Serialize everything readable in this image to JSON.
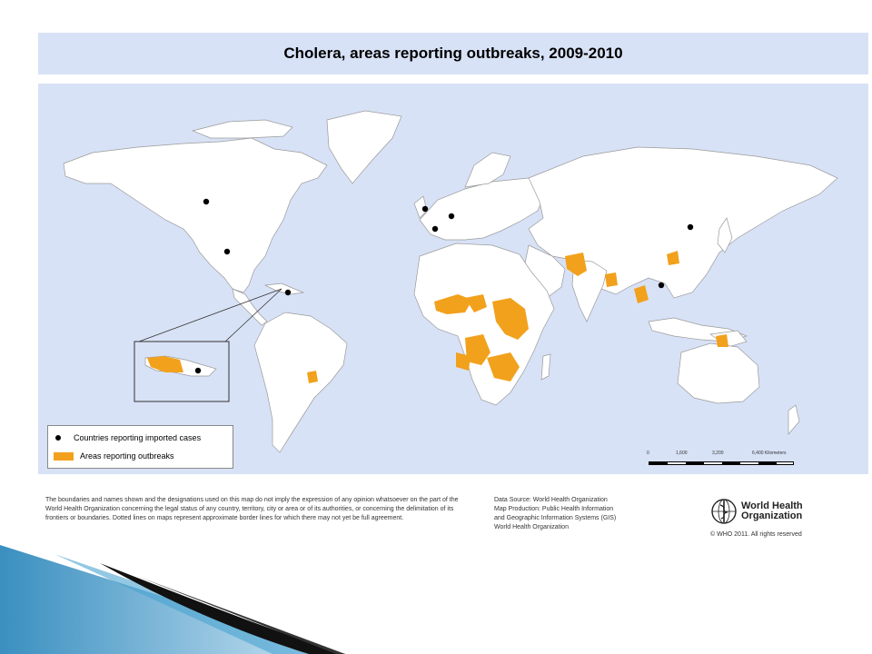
{
  "title": "Cholera, areas reporting outbreaks, 2009-2010",
  "legend": {
    "imported_label": "Countries reporting imported cases",
    "outbreak_label": "Areas reporting outbreaks"
  },
  "scale": {
    "ticks": [
      "0",
      "1,600",
      "3,200",
      "6,400 Kilometers"
    ]
  },
  "disclaimer": "The boundaries and names shown and the designations used on this map do not imply the expression of any opinion whatsoever on the part of the World Health Organization concerning the legal status of any country, territory, city or area or of its authorities, or concerning the delimitation of its frontiers or boundaries. Dotted lines on maps represent approximate border lines for which there may not yet be full agreement.",
  "source_lines": [
    "Data Source: World Health Organization",
    "Map Production: Public Health Information",
    "and Geographic Information Systems (GIS)",
    "World Health Organization"
  ],
  "who": {
    "line1": "World Health",
    "line2": "Organization",
    "copyright": "© WHO 2011. All rights reserved"
  },
  "colors": {
    "ocean": "#d8e2f6",
    "land": "#ffffff",
    "outbreak": "#f2a11c",
    "imported": "#000000"
  }
}
